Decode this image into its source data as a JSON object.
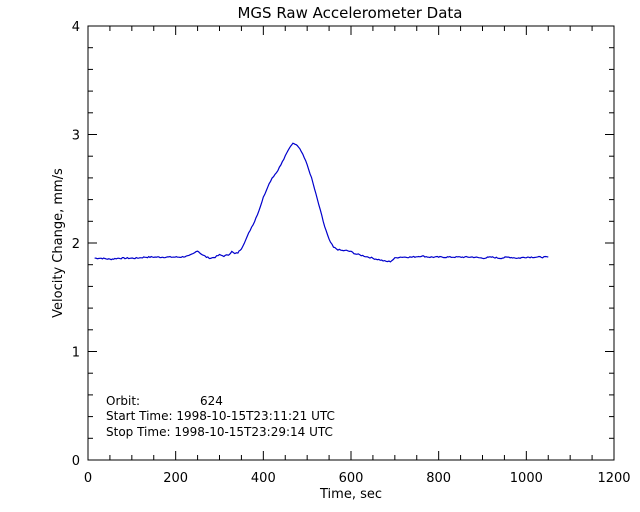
{
  "chart_data": {
    "type": "line",
    "title": "MGS Raw Accelerometer Data",
    "xlabel": "Time, sec",
    "ylabel": "Velocity Change, mm/s",
    "xlim": [
      0,
      1200
    ],
    "ylim": [
      0,
      4
    ],
    "x_ticks": [
      "0",
      "200",
      "400",
      "600",
      "800",
      "1000",
      "1200"
    ],
    "y_ticks": [
      "0",
      "1",
      "2",
      "3",
      "4"
    ],
    "grid": false,
    "line_color": "#0000cc",
    "series": [
      {
        "x": [
          15,
          30,
          50,
          70,
          90,
          110,
          130,
          150,
          170,
          190,
          210,
          230,
          240,
          250,
          255,
          262,
          270,
          280,
          290,
          300,
          310,
          320,
          328,
          335,
          342,
          350,
          360,
          370,
          380,
          390,
          400,
          410,
          420,
          430,
          440,
          450,
          460,
          465,
          470,
          475,
          480,
          490,
          500,
          510,
          520,
          530,
          540,
          550,
          560,
          570,
          580,
          590,
          600,
          610,
          620,
          630,
          640,
          650,
          660,
          670,
          680,
          690,
          700,
          710,
          720,
          740,
          760,
          780,
          800,
          820,
          840,
          860,
          880,
          900,
          920,
          940,
          960,
          980,
          1000,
          1020,
          1040,
          1050
        ],
        "y": [
          1.86,
          1.86,
          1.85,
          1.86,
          1.86,
          1.86,
          1.87,
          1.87,
          1.87,
          1.87,
          1.87,
          1.88,
          1.9,
          1.93,
          1.91,
          1.89,
          1.87,
          1.86,
          1.87,
          1.89,
          1.88,
          1.89,
          1.92,
          1.9,
          1.91,
          1.95,
          2.03,
          2.12,
          2.2,
          2.3,
          2.42,
          2.52,
          2.6,
          2.65,
          2.72,
          2.8,
          2.88,
          2.91,
          2.92,
          2.91,
          2.89,
          2.82,
          2.72,
          2.6,
          2.45,
          2.3,
          2.15,
          2.03,
          1.96,
          1.94,
          1.93,
          1.93,
          1.92,
          1.9,
          1.89,
          1.88,
          1.87,
          1.86,
          1.85,
          1.84,
          1.83,
          1.83,
          1.86,
          1.87,
          1.87,
          1.87,
          1.88,
          1.87,
          1.87,
          1.87,
          1.87,
          1.87,
          1.87,
          1.86,
          1.87,
          1.86,
          1.87,
          1.86,
          1.87,
          1.87,
          1.87,
          1.87
        ]
      }
    ],
    "annotations": {
      "orbit_label": "Orbit:",
      "orbit_value": "624",
      "start_time": "Start Time: 1998-10-15T23:11:21 UTC",
      "stop_time": "Stop Time: 1998-10-15T23:29:14 UTC"
    }
  }
}
